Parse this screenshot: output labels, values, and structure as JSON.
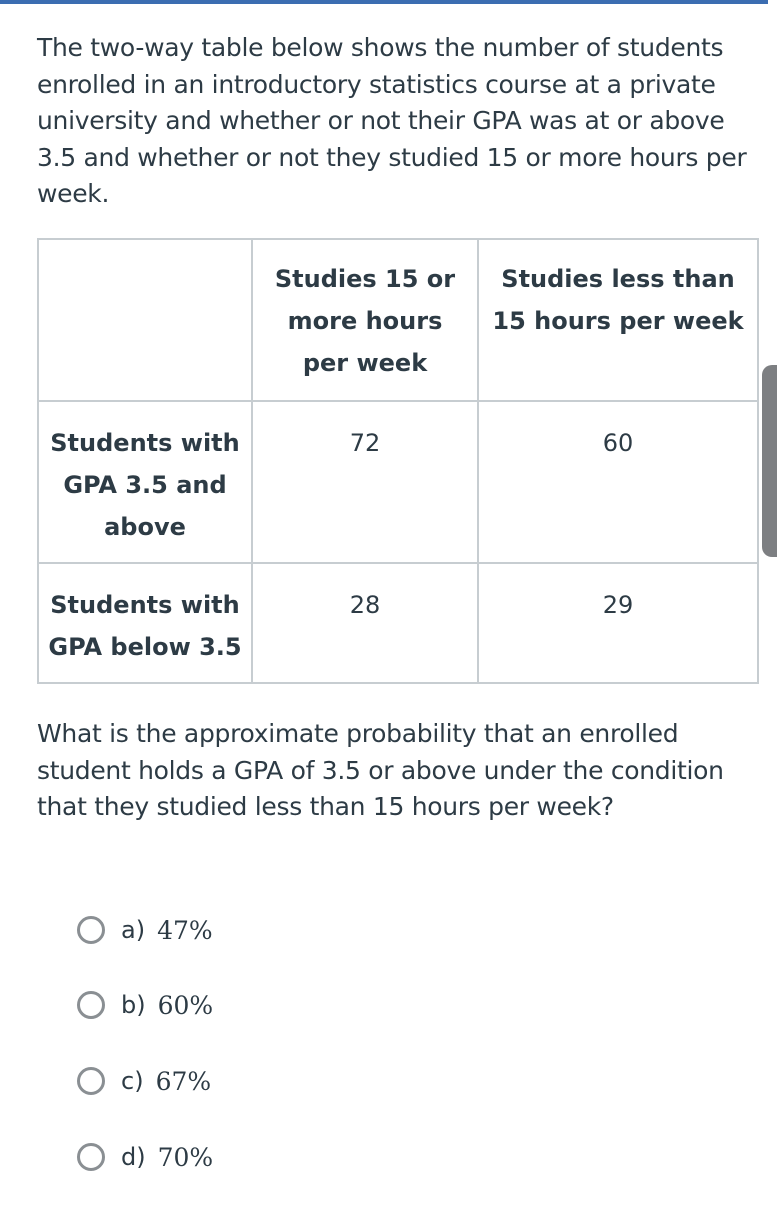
{
  "intro": "The two-way table below shows the number of students enrolled in an introductory statistics course at a private university and whether or not their GPA was at or above 3.5 and whether or not they studied 15 or more hours per week.",
  "table": {
    "headers": [
      "",
      "Studies 15 or more hours per week",
      "Studies less than 15 hours per week"
    ],
    "rows": [
      {
        "label": "Students with GPA 3.5 and above",
        "values": [
          "72",
          "60"
        ]
      },
      {
        "label": "Students with GPA below 3.5",
        "values": [
          "28",
          "29"
        ]
      }
    ]
  },
  "question": "What is the approximate probability that an enrolled student holds a GPA of 3.5 or above under the condition that they studied less than 15 hours per week?",
  "options": [
    {
      "label": "a)",
      "value": "47%"
    },
    {
      "label": "b)",
      "value": "60%"
    },
    {
      "label": "c)",
      "value": "67%"
    },
    {
      "label": "d)",
      "value": "70%"
    }
  ],
  "colors": {
    "accent": "#3b6db1",
    "text": "#2d3b45",
    "border": "#c7cdd1"
  }
}
